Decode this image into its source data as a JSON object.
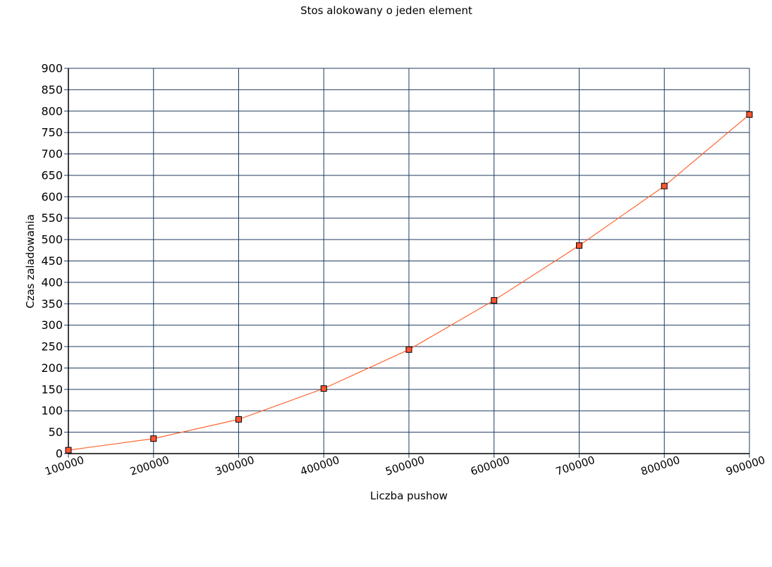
{
  "chart_data": {
    "type": "line",
    "title": "Stos alokowany o jeden element",
    "xlabel": "Liczba pushow",
    "ylabel": "Czas zaladowania",
    "categories": [
      "100000",
      "200000",
      "300000",
      "400000",
      "500000",
      "600000",
      "700000",
      "800000",
      "900000"
    ],
    "series": [
      {
        "values": [
          8,
          35,
          80,
          152,
          243,
          358,
          486,
          625,
          792
        ]
      }
    ],
    "y_ticks": [
      "0",
      "50",
      "100",
      "150",
      "200",
      "250",
      "300",
      "350",
      "400",
      "450",
      "500",
      "550",
      "600",
      "650",
      "700",
      "750",
      "800",
      "850",
      "900"
    ],
    "ylim": [
      0,
      900
    ],
    "grid": true,
    "marker": "square",
    "line_color": "#ff6633",
    "marker_fill": "#ff5533",
    "grid_color": "#1f3a5f"
  }
}
